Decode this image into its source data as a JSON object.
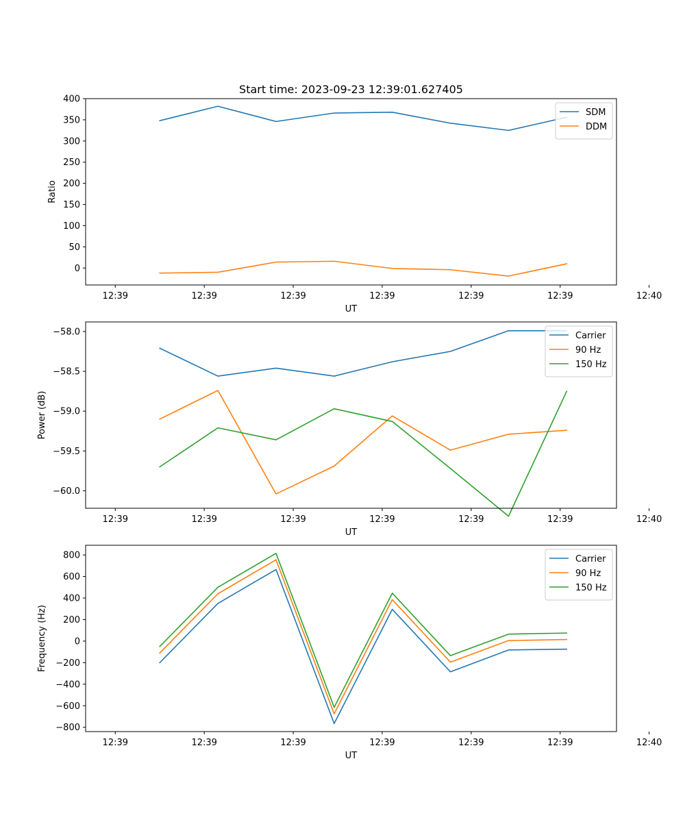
{
  "chart_data": [
    {
      "type": "line",
      "title": "Start time: 2023-09-23 12:39:01.627405",
      "xlabel": "UT",
      "ylabel": "Ratio",
      "ylim": [
        -40,
        400
      ],
      "yticks": [
        0,
        50,
        100,
        150,
        200,
        250,
        300,
        350,
        400
      ],
      "ytick_labels": [
        "0",
        "50",
        "100",
        "150",
        "200",
        "250",
        "300",
        "350",
        "400"
      ],
      "xlim": [
        -0.5,
        8.45
      ],
      "xticks": [
        0,
        1.5,
        3,
        4.5,
        6,
        7.5,
        9
      ],
      "xtick_labels": [
        "12:39",
        "12:39",
        "12:39",
        "12:39",
        "12:39",
        "12:39",
        "12:40"
      ],
      "x": [
        0.75,
        1.73,
        2.71,
        3.69,
        4.67,
        5.65,
        6.63,
        7.61
      ],
      "legend": "upper right",
      "series": [
        {
          "name": "SDM",
          "color": "#1f77b4",
          "values": [
            348,
            382,
            346,
            366,
            368,
            342,
            325,
            356
          ]
        },
        {
          "name": "DDM",
          "color": "#ff7f0e",
          "values": [
            -12,
            -10,
            14,
            16,
            -1,
            -4,
            -19,
            10
          ]
        }
      ]
    },
    {
      "type": "line",
      "title": "",
      "xlabel": "UT",
      "ylabel": "Power (dB)",
      "ylim": [
        -60.22,
        -57.88
      ],
      "yticks": [
        -60.0,
        -59.5,
        -59.0,
        -58.5,
        -58.0
      ],
      "ytick_labels": [
        "−60.0",
        "−59.5",
        "−59.0",
        "−58.5",
        "−58.0"
      ],
      "xlim": [
        -0.5,
        8.45
      ],
      "xticks": [
        0,
        1.5,
        3,
        4.5,
        6,
        7.5,
        9
      ],
      "xtick_labels": [
        "12:39",
        "12:39",
        "12:39",
        "12:39",
        "12:39",
        "12:39",
        "12:40"
      ],
      "x": [
        0.75,
        1.73,
        2.71,
        3.69,
        4.67,
        5.65,
        6.63,
        7.61
      ],
      "legend": "upper right",
      "series": [
        {
          "name": "Carrier",
          "color": "#1f77b4",
          "values": [
            -58.21,
            -58.56,
            -58.46,
            -58.56,
            -58.38,
            -58.25,
            -57.99,
            -57.99
          ]
        },
        {
          "name": "90 Hz",
          "color": "#ff7f0e",
          "values": [
            -59.1,
            -58.74,
            -60.04,
            -59.69,
            -59.06,
            -59.49,
            -59.29,
            -59.24
          ]
        },
        {
          "name": "150 Hz",
          "color": "#2ca02c",
          "values": [
            -59.7,
            -59.21,
            -59.36,
            -58.97,
            -59.13,
            -59.72,
            -60.32,
            -58.75
          ]
        }
      ]
    },
    {
      "type": "line",
      "title": "",
      "xlabel": "UT",
      "ylabel": "Frequency (Hz)",
      "ylim": [
        -840,
        890
      ],
      "yticks": [
        -800,
        -600,
        -400,
        -200,
        0,
        200,
        400,
        600,
        800
      ],
      "ytick_labels": [
        "−800",
        "−600",
        "−400",
        "−200",
        "0",
        "200",
        "400",
        "600",
        "800"
      ],
      "xlim": [
        -0.5,
        8.45
      ],
      "xticks": [
        0,
        1.5,
        3,
        4.5,
        6,
        7.5,
        9
      ],
      "xtick_labels": [
        "12:39",
        "12:39",
        "12:39",
        "12:39",
        "12:39",
        "12:39",
        "12:40"
      ],
      "x": [
        0.75,
        1.73,
        2.71,
        3.69,
        4.67,
        5.65,
        6.63,
        7.61
      ],
      "legend": "upper right",
      "series": [
        {
          "name": "Carrier",
          "color": "#1f77b4",
          "values": [
            -200,
            350,
            665,
            -765,
            295,
            -285,
            -82,
            -75
          ]
        },
        {
          "name": "90 Hz",
          "color": "#ff7f0e",
          "values": [
            -110,
            440,
            755,
            -675,
            385,
            -195,
            5,
            15
          ]
        },
        {
          "name": "150 Hz",
          "color": "#2ca02c",
          "values": [
            -50,
            500,
            815,
            -615,
            445,
            -135,
            65,
            75
          ]
        }
      ]
    }
  ]
}
